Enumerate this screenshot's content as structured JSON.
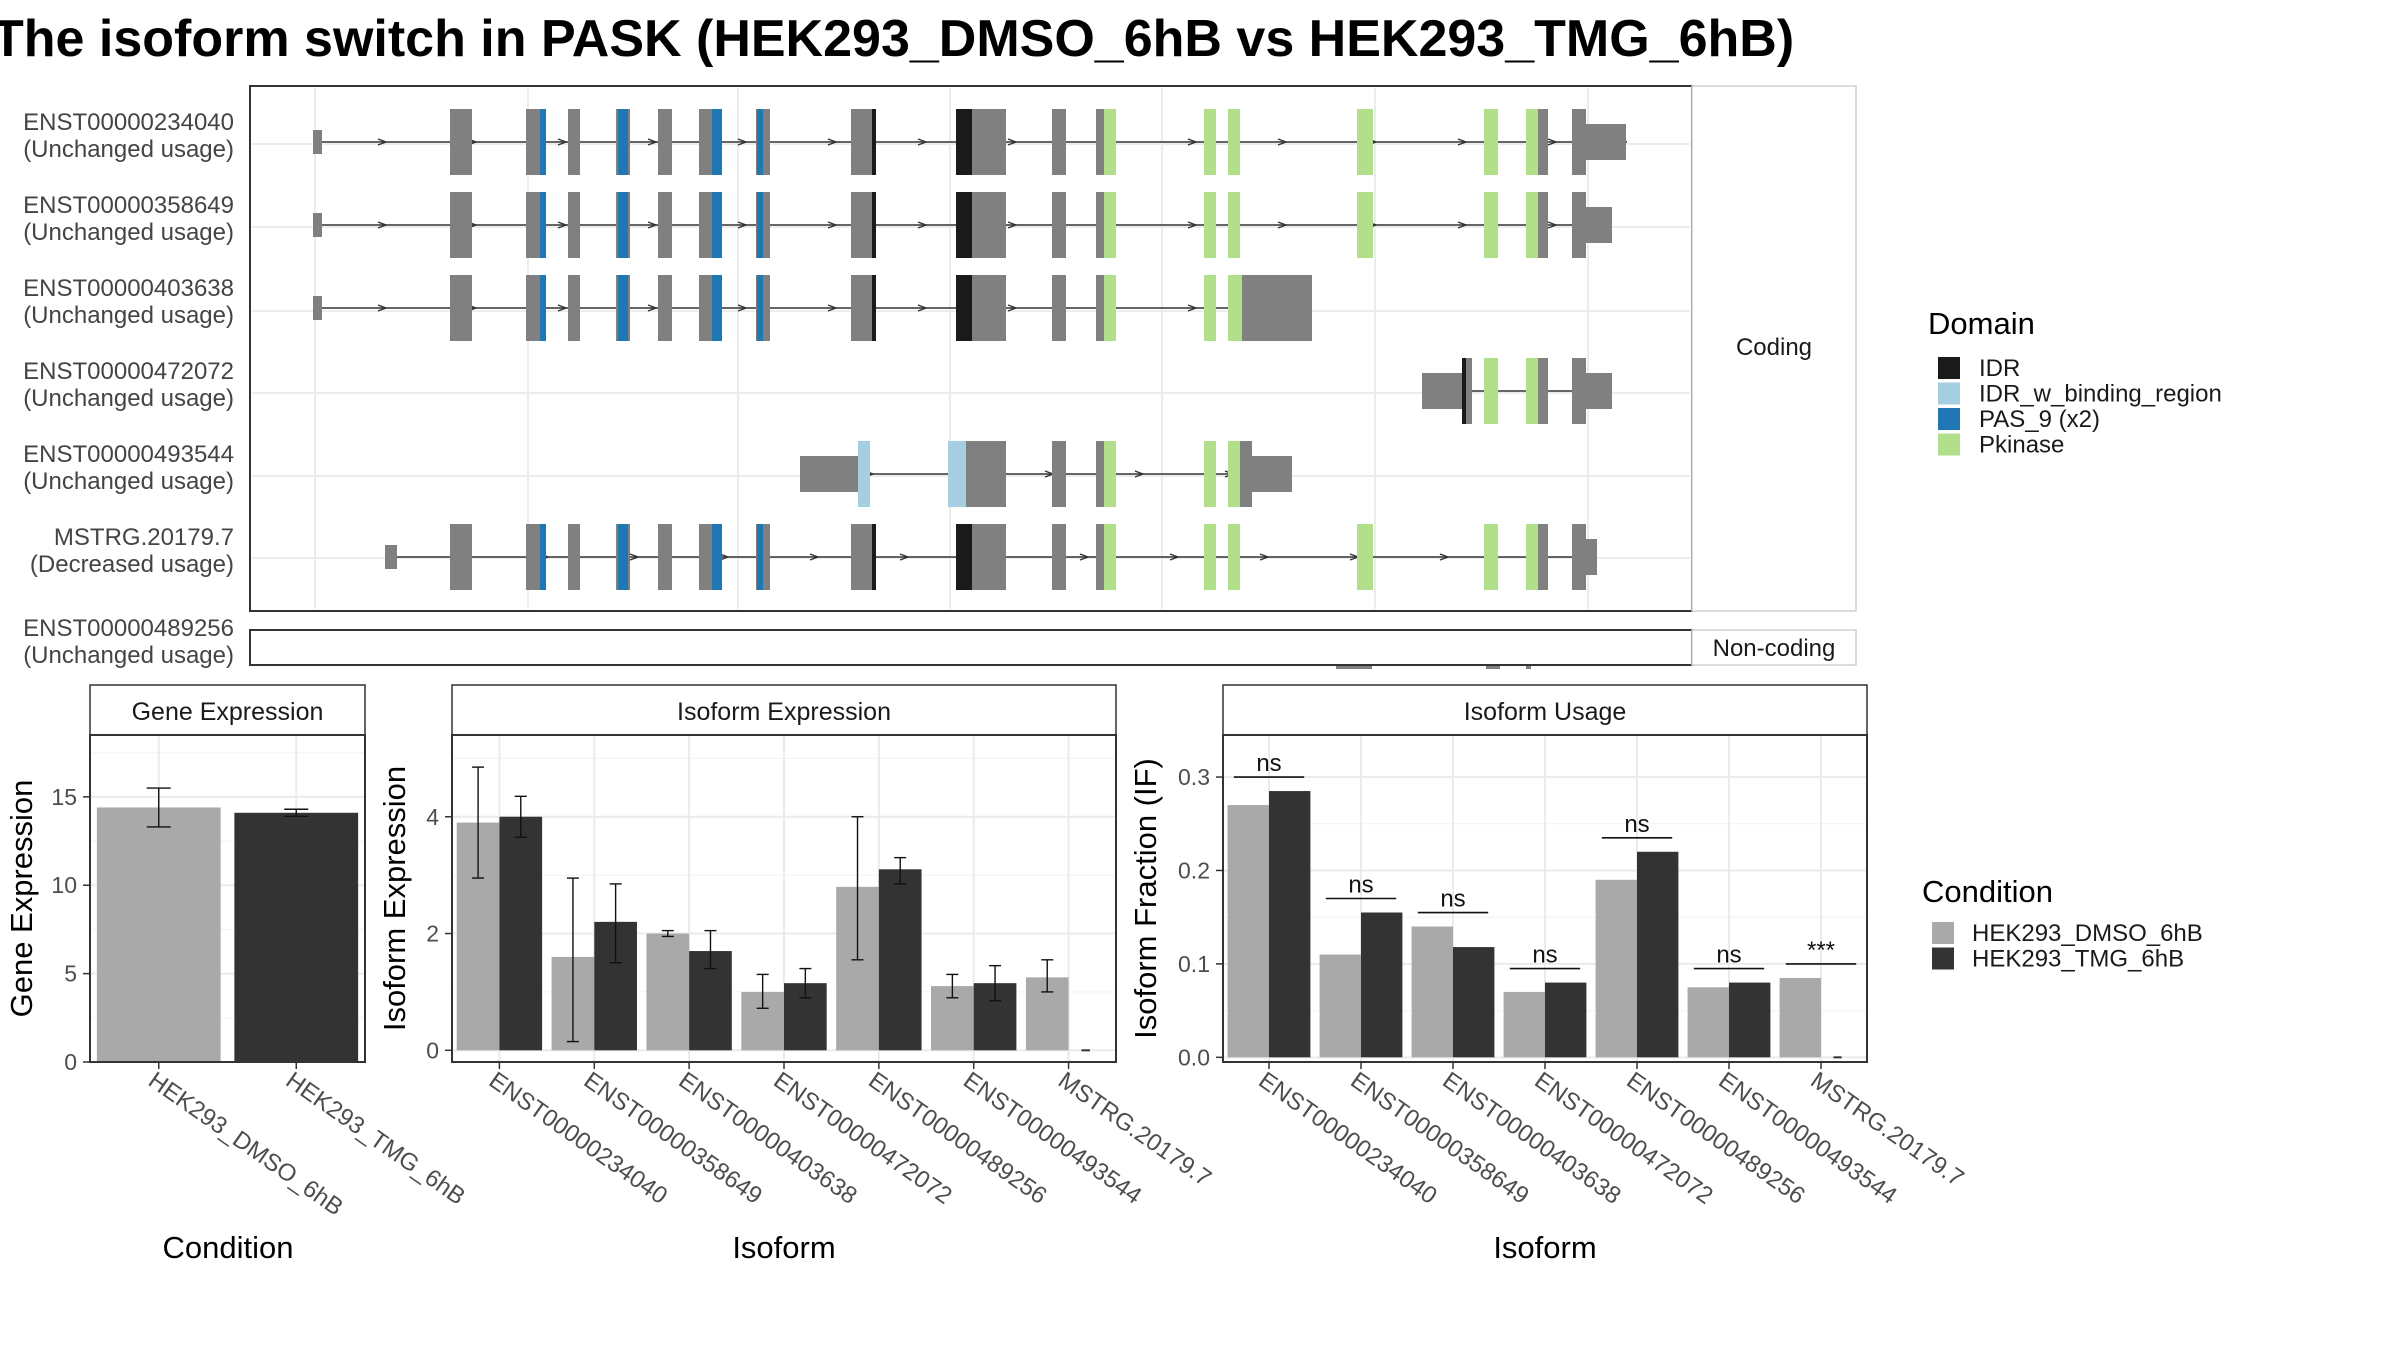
{
  "title": "The isoform switch in PASK (HEK293_DMSO_6hB vs HEK293_TMG_6hB)",
  "colors": {
    "IDR": "#1a1a1a",
    "IDR_w_binding_region": "#a6cee3",
    "PAS_9": "#1f78b4",
    "Pkinase": "#b2df8a",
    "exon": "#808080",
    "cond1": "#a9a9a9",
    "cond2": "#333333"
  },
  "domain_legend": {
    "title": "Domain",
    "items": [
      {
        "label": "IDR",
        "color_key": "IDR"
      },
      {
        "label": "IDR_w_binding_region",
        "color_key": "IDR_w_binding_region"
      },
      {
        "label": "PAS_9 (x2)",
        "color_key": "PAS_9"
      },
      {
        "label": "Pkinase",
        "color_key": "Pkinase"
      }
    ]
  },
  "condition_legend": {
    "title": "Condition",
    "items": [
      {
        "label": "HEK293_DMSO_6hB",
        "color_key": "cond1"
      },
      {
        "label": "HEK293_TMG_6hB",
        "color_key": "cond2"
      }
    ]
  },
  "structure": {
    "facets": [
      "Coding",
      "Non-coding"
    ],
    "transcripts": [
      {
        "id": "ENST00000234040",
        "usage": "(Unchanged usage)",
        "group": "Coding"
      },
      {
        "id": "ENST00000358649",
        "usage": "(Unchanged usage)",
        "group": "Coding"
      },
      {
        "id": "ENST00000403638",
        "usage": "(Unchanged usage)",
        "group": "Coding"
      },
      {
        "id": "ENST00000472072",
        "usage": "(Unchanged usage)",
        "group": "Coding"
      },
      {
        "id": "ENST00000493544",
        "usage": "(Unchanged usage)",
        "group": "Coding"
      },
      {
        "id": "MSTRG.20179.7",
        "usage": "(Decreased usage)",
        "group": "Coding"
      },
      {
        "id": "ENST00000489256",
        "usage": "(Unchanged usage)",
        "group": "Non-coding"
      }
    ]
  },
  "chart_data": [
    {
      "type": "bar",
      "title": "Gene Expression",
      "xlabel": "Condition",
      "ylabel": "Gene Expression",
      "categories": [
        "HEK293_DMSO_6hB",
        "HEK293_TMG_6hB"
      ],
      "values": [
        14.4,
        14.1
      ],
      "error_low": [
        13.3,
        13.9
      ],
      "error_high": [
        15.5,
        14.3
      ],
      "ylim": [
        0,
        18.5
      ],
      "yticks": [
        0,
        5,
        10,
        15
      ]
    },
    {
      "type": "bar",
      "title": "Isoform Expression",
      "xlabel": "Isoform",
      "ylabel": "Isoform Expression",
      "categories": [
        "ENST00000234040",
        "ENST00000358649",
        "ENST00000403638",
        "ENST00000472072",
        "ENST00000489256",
        "ENST00000493544",
        "MSTRG.20179.7"
      ],
      "series": [
        {
          "name": "HEK293_DMSO_6hB",
          "values": [
            3.9,
            1.6,
            2.0,
            1.0,
            2.8,
            1.1,
            1.25
          ],
          "error_low": [
            2.95,
            0.15,
            1.95,
            0.72,
            1.55,
            0.9,
            1.0
          ],
          "error_high": [
            4.85,
            2.95,
            2.05,
            1.3,
            4.0,
            1.3,
            1.55
          ]
        },
        {
          "name": "HEK293_TMG_6hB",
          "values": [
            4.0,
            2.2,
            1.7,
            1.15,
            3.1,
            1.15,
            0.0
          ],
          "error_low": [
            3.65,
            1.5,
            1.4,
            0.9,
            2.85,
            0.85,
            0.0
          ],
          "error_high": [
            4.35,
            2.85,
            2.05,
            1.4,
            3.3,
            1.45,
            0.0
          ]
        }
      ],
      "ylim": [
        -0.2,
        5.4
      ],
      "yticks": [
        0,
        2,
        4
      ]
    },
    {
      "type": "bar",
      "title": "Isoform Usage",
      "xlabel": "Isoform",
      "ylabel": "Isoform Fraction (IF)",
      "categories": [
        "ENST00000234040",
        "ENST00000358649",
        "ENST00000403638",
        "ENST00000472072",
        "ENST00000489256",
        "ENST00000493544",
        "MSTRG.20179.7"
      ],
      "series": [
        {
          "name": "HEK293_DMSO_6hB",
          "values": [
            0.27,
            0.11,
            0.14,
            0.07,
            0.19,
            0.075,
            0.085
          ]
        },
        {
          "name": "HEK293_TMG_6hB",
          "values": [
            0.285,
            0.155,
            0.118,
            0.08,
            0.22,
            0.08,
            0.0
          ]
        }
      ],
      "significance": [
        "ns",
        "ns",
        "ns",
        "ns",
        "ns",
        "ns",
        "***"
      ],
      "ylim": [
        -0.005,
        0.345
      ],
      "yticks": [
        0.0,
        0.1,
        0.2,
        0.3
      ],
      "ytick_labels": [
        "0.0",
        "0.1",
        "0.2",
        "0.3"
      ]
    }
  ]
}
